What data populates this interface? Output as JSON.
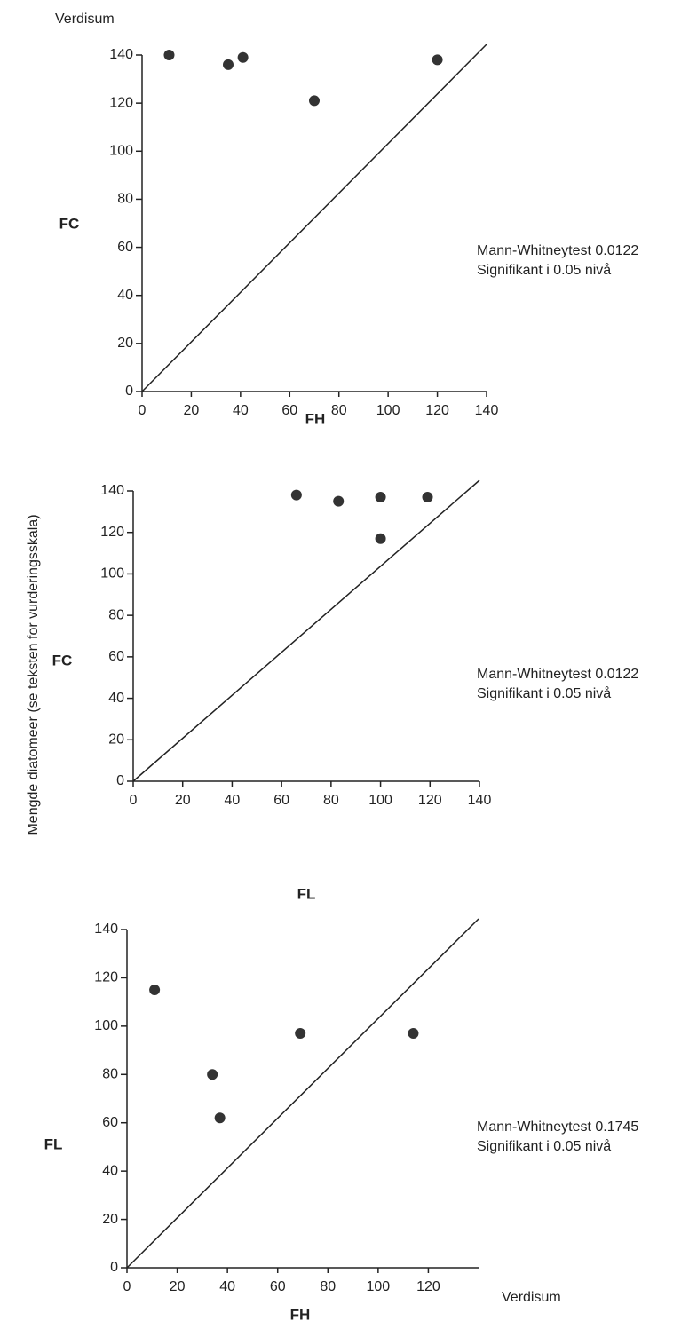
{
  "texts": {
    "top_label": "Verdisum",
    "side_label": "Mengde diatomeer (se teksten for vurderingsskala)",
    "bottom_label": "Verdisum"
  },
  "chart_data": [
    {
      "type": "scatter",
      "x_label": "FH",
      "y_label": "FC",
      "annotation": [
        "Mann-Whitneytest 0.0122",
        "Signifikant i 0.05 nivå"
      ],
      "x": [
        11,
        35,
        41,
        70,
        120
      ],
      "y": [
        140,
        136,
        139,
        121,
        138
      ],
      "xlim": [
        0,
        140
      ],
      "ylim": [
        0,
        140
      ],
      "xticks": [
        0,
        20,
        40,
        60,
        80,
        100,
        120,
        140
      ],
      "yticks": [
        0,
        20,
        40,
        60,
        80,
        100,
        120,
        140
      ],
      "color": "#333333"
    },
    {
      "type": "scatter",
      "x_label": "FL",
      "y_label": "FC",
      "annotation": [
        "Mann-Whitneytest 0.0122",
        "Signifikant i 0.05 nivå"
      ],
      "x": [
        66,
        83,
        100,
        119,
        100
      ],
      "y": [
        138,
        135,
        137,
        137,
        117
      ],
      "xlim": [
        0,
        140
      ],
      "ylim": [
        0,
        140
      ],
      "xticks": [
        0,
        20,
        40,
        60,
        80,
        100,
        120,
        140
      ],
      "yticks": [
        0,
        20,
        40,
        60,
        80,
        100,
        120,
        140
      ],
      "color": "#333333"
    },
    {
      "type": "scatter",
      "x_label": "FH",
      "y_label": "FL",
      "annotation": [
        "Mann-Whitneytest 0.1745",
        "Signifikant i 0.05 nivå"
      ],
      "x": [
        11,
        34,
        37,
        69,
        114
      ],
      "y": [
        115,
        80,
        62,
        97,
        97
      ],
      "xlim": [
        0,
        140
      ],
      "ylim": [
        0,
        140
      ],
      "xticks": [
        0,
        20,
        40,
        60,
        80,
        100,
        120
      ],
      "yticks": [
        0,
        20,
        40,
        60,
        80,
        100,
        120,
        140
      ],
      "color": "#333333"
    }
  ]
}
